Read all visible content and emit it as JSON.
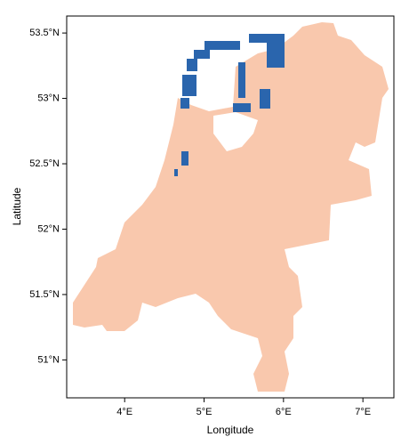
{
  "chart_data": {
    "type": "map",
    "xlabel": "Longitude",
    "ylabel": "Latitude",
    "xlim": [
      3.27,
      7.39
    ],
    "ylim": [
      50.71,
      53.63
    ],
    "xticks": [
      {
        "value": 4,
        "label": "4°E"
      },
      {
        "value": 5,
        "label": "5°E"
      },
      {
        "value": 6,
        "label": "6°E"
      },
      {
        "value": 7,
        "label": "7°E"
      }
    ],
    "yticks": [
      {
        "value": 51,
        "label": "51°N"
      },
      {
        "value": 51.5,
        "label": "51.5°N"
      },
      {
        "value": 52,
        "label": "52°N"
      },
      {
        "value": 52.5,
        "label": "52.5°N"
      },
      {
        "value": 53,
        "label": "53°N"
      },
      {
        "value": 53.5,
        "label": "53.5°N"
      }
    ],
    "land_color": "#f9c8ad",
    "water_color": "#2a65ad"
  }
}
